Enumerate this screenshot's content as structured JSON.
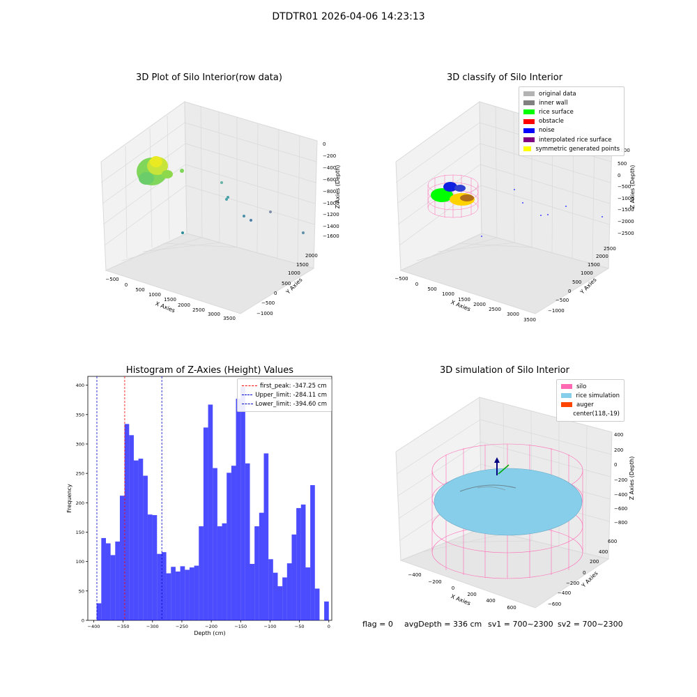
{
  "suptitle": "DTDTR01 2026-04-06 14:23:13",
  "colors": {
    "histogram_bar": "#0000ff",
    "first_peak_line": "#ff0000",
    "limit_lines": "#0000cc",
    "silo_wire": "#ff69b4",
    "rice_surface": "#87ceeb",
    "pane": "#f2f2f2",
    "grid": "#d9d9d9"
  },
  "panel_raw": {
    "title": "3D Plot of Silo Interior(row data)",
    "x_label": "X Axies",
    "y_label": "Y Axies",
    "z_label": "Z Axies (Depth)",
    "x_ticks": [
      "−500",
      "0",
      "500",
      "1000",
      "1500",
      "2000",
      "2500",
      "3000",
      "3500"
    ],
    "y_ticks": [
      "−1000",
      "−500",
      "0",
      "500",
      "1000",
      "1500",
      "2000"
    ],
    "z_ticks": [
      "0",
      "−200",
      "−400",
      "−600",
      "−800",
      "−1000",
      "−1200",
      "−1400",
      "−1600"
    ]
  },
  "panel_classify": {
    "title": "3D classify of Silo Interior",
    "x_label": "X Axies",
    "y_label": "Y Axies",
    "z_label": "Z Axies (Depth)",
    "x_ticks": [
      "−500",
      "0",
      "500",
      "1000",
      "1500",
      "2000",
      "2500",
      "3000",
      "3500"
    ],
    "y_ticks": [
      "−1000",
      "−500",
      "0",
      "500",
      "1000",
      "1500",
      "2000",
      "2500"
    ],
    "z_ticks": [
      "1000",
      "500",
      "0",
      "−500",
      "−1000",
      "−1500",
      "−2000",
      "−2500"
    ],
    "legend": [
      {
        "label": "original data",
        "color": "#b3b3b3"
      },
      {
        "label": "inner wall",
        "color": "#808080"
      },
      {
        "label": "rice surface",
        "color": "#00ff00"
      },
      {
        "label": "obstacle",
        "color": "#ff0000"
      },
      {
        "label": "noise",
        "color": "#0000ff"
      },
      {
        "label": "interpolated rice surface",
        "color": "#800080"
      },
      {
        "label": "symmetric generated points",
        "color": "#ffff00"
      }
    ]
  },
  "panel_hist": {
    "title": "Histogram of Z-Axies (Height) Values",
    "legend": [
      {
        "label": "first_peak: -347.25 cm",
        "color": "#ff0000"
      },
      {
        "label": "Upper_limit: -284.11 cm",
        "color": "#0000cc"
      },
      {
        "label": "Lower_limit: -394.60 cm",
        "color": "#0000cc"
      }
    ]
  },
  "panel_sim": {
    "title": "3D simulation of Silo Interior",
    "x_label": "X Axies",
    "y_label": "Y Axies",
    "z_label": "Z Axies (Depth)",
    "x_ticks": [
      "−400",
      "−200",
      "0",
      "200",
      "400",
      "600"
    ],
    "y_ticks": [
      "600",
      "400",
      "200",
      "0",
      "−200",
      "−400",
      "−600"
    ],
    "z_ticks": [
      "400",
      "200",
      "0",
      "−200",
      "−400",
      "−600",
      "−800"
    ],
    "legend": [
      {
        "label": "silo",
        "color": "#ff69b4"
      },
      {
        "label": "rice simulation",
        "color": "#87ceeb"
      },
      {
        "label": "auger",
        "color": "#ff4500"
      },
      {
        "label": "center(118,-19)",
        "color": ""
      }
    ]
  },
  "status": {
    "flag": "flag = 0",
    "avg_depth": "avgDepth = 336 cm",
    "sv1": "sv1 = 700~2300",
    "sv2": "sv2 = 700~2300"
  },
  "chart_data": [
    {
      "type": "scatter",
      "title": "3D Plot of Silo Interior(row data)",
      "xlabel": "X Axies",
      "ylabel": "Y Axies",
      "zlabel": "Z Axies (Depth)",
      "xlim": [
        -500,
        3500
      ],
      "ylim": [
        -1000,
        2000
      ],
      "zlim": [
        -1600,
        0
      ]
    },
    {
      "type": "scatter",
      "title": "3D classify of Silo Interior",
      "xlabel": "X Axies",
      "ylabel": "Y Axies",
      "zlabel": "Z Axies (Depth)",
      "xlim": [
        -500,
        3500
      ],
      "ylim": [
        -1000,
        2500
      ],
      "zlim": [
        -2500,
        1000
      ]
    },
    {
      "type": "bar",
      "title": "Histogram of Z-Axies (Height) Values",
      "xlabel": "Depth (cm)",
      "ylabel": "Frequency",
      "xlim": [
        -410,
        5
      ],
      "ylim": [
        0,
        415
      ],
      "x_ticks": [
        -400,
        -350,
        -300,
        -250,
        -200,
        -150,
        -100,
        -50,
        0
      ],
      "y_ticks": [
        0,
        50,
        100,
        150,
        200,
        250,
        300,
        350,
        400
      ],
      "bin_start": -395,
      "bin_width": 7.9,
      "values": [
        29,
        140,
        131,
        111,
        134,
        212,
        334,
        315,
        272,
        275,
        246,
        180,
        179,
        113,
        116,
        80,
        91,
        83,
        92,
        86,
        90,
        93,
        160,
        328,
        367,
        259,
        160,
        165,
        251,
        263,
        377,
        397,
        267,
        96,
        160,
        183,
        284,
        104,
        81,
        58,
        73,
        97,
        146,
        191,
        197,
        90,
        230,
        54,
        0,
        32
      ],
      "vlines": [
        {
          "name": "first_peak",
          "x": -347.25
        },
        {
          "name": "Upper_limit",
          "x": -284.11
        },
        {
          "name": "Lower_limit",
          "x": -394.6
        }
      ]
    },
    {
      "type": "scatter",
      "title": "3D simulation of Silo Interior",
      "xlabel": "X Axies",
      "ylabel": "Y Axies",
      "zlabel": "Z Axies (Depth)",
      "xlim": [
        -500,
        700
      ],
      "ylim": [
        -700,
        700
      ],
      "zlim": [
        -900,
        450
      ]
    }
  ]
}
